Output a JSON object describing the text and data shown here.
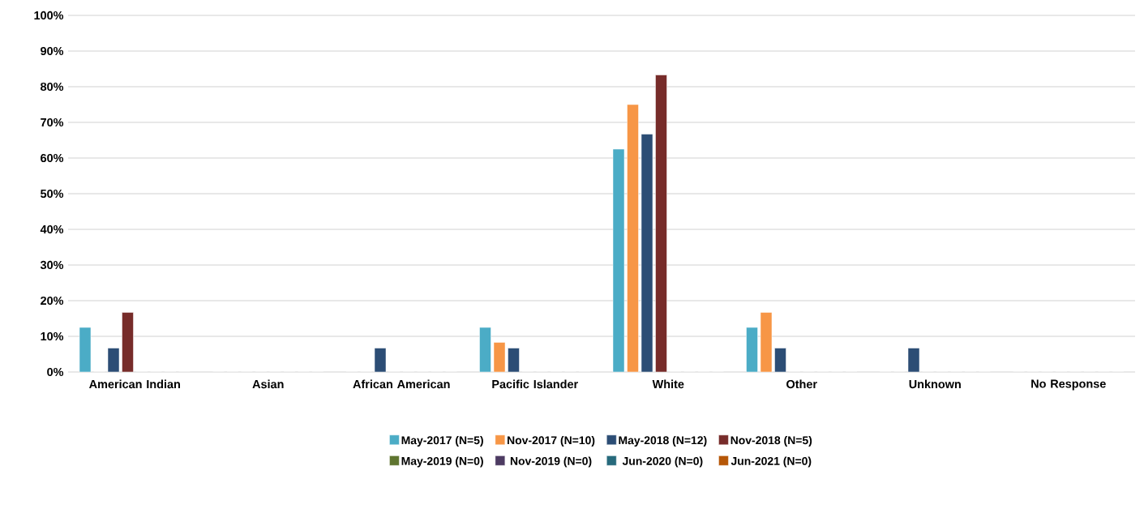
{
  "chart_data": {
    "type": "bar",
    "categories": [
      "American Indian",
      "Asian",
      "African American",
      "Pacific Islander",
      "White",
      "Other",
      "Unknown",
      "No Response"
    ],
    "series": [
      {
        "name": "May-2017 (N=5)",
        "color": "#4bacc6",
        "values": [
          12.5,
          0,
          0,
          12.5,
          62.5,
          12.5,
          0,
          0
        ]
      },
      {
        "name": "Nov-2017 (N=10)",
        "color": "#f79646",
        "values": [
          0,
          0,
          0,
          8.3,
          75,
          16.7,
          0,
          0
        ]
      },
      {
        "name": "May-2018 (N=12)",
        "color": "#2c4d75",
        "values": [
          6.7,
          0,
          6.7,
          6.7,
          66.7,
          6.7,
          6.7,
          0
        ]
      },
      {
        "name": "Nov-2018 (N=5)",
        "color": "#772c2a",
        "values": [
          16.7,
          0,
          0,
          0,
          83.3,
          0,
          0,
          0
        ]
      },
      {
        "name": "May-2019 (N=0)",
        "color": "#5f7530",
        "values": [
          0,
          0,
          0,
          0,
          0,
          0,
          0,
          0
        ]
      },
      {
        "name": "Nov-2019 (N=0)",
        "color": "#4d3b62",
        "values": [
          0,
          0,
          0,
          0,
          0,
          0,
          0,
          0
        ]
      },
      {
        "name": "Jun-2020 (N=0)",
        "color": "#276a7c",
        "values": [
          0,
          0,
          0,
          0,
          0,
          0,
          0,
          0
        ]
      },
      {
        "name": "Jun-2021 (N=0)",
        "color": "#b65708",
        "values": [
          0,
          0,
          0,
          0,
          0,
          0,
          0,
          0
        ]
      }
    ],
    "ylim": [
      0,
      100
    ],
    "yticks": [
      {
        "value": 0,
        "label": "0%"
      },
      {
        "value": 10,
        "label": "10%"
      },
      {
        "value": 20,
        "label": "20%"
      },
      {
        "value": 30,
        "label": "30%"
      },
      {
        "value": 40,
        "label": "40%"
      },
      {
        "value": 50,
        "label": "50%"
      },
      {
        "value": 60,
        "label": "60%"
      },
      {
        "value": 70,
        "label": "70%"
      },
      {
        "value": 80,
        "label": "80%"
      },
      {
        "value": 90,
        "label": "90%"
      },
      {
        "value": 100,
        "label": "100%"
      }
    ],
    "grid": "y",
    "legend": "bottom"
  }
}
